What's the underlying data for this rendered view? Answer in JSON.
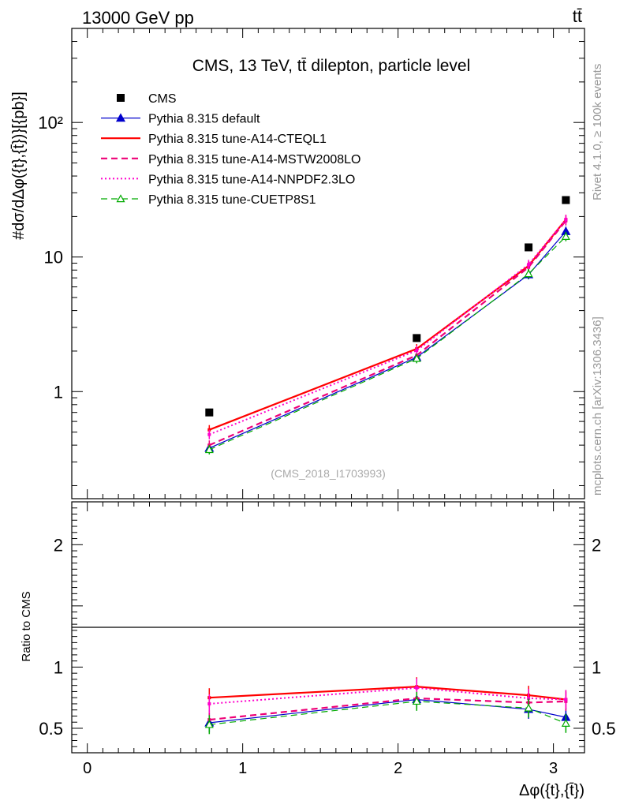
{
  "header": {
    "left": "13000 GeV pp",
    "right": "tt̄"
  },
  "side_label_top": "Rivet 4.1.0, ≥ 100k events",
  "side_label_bottom": "mcplots.cern.ch [arXiv:1306.3436]",
  "chart_data": {
    "type": "line",
    "title": "CMS, 13 TeV, tt̄ dilepton, particle level",
    "watermark": "(CMS_2018_I1703993)",
    "ylabel": "#dσ/dΔφ({t},{t̄})}[{pb}]",
    "xlabel": "Δφ({t},{t̄})",
    "ratio_ylabel": "Ratio to CMS",
    "xlim": [
      -0.1,
      3.2
    ],
    "ylim": [
      0.16,
      500
    ],
    "yscale": "log",
    "ratio_ylim": [
      0.3,
      2.35
    ],
    "x_ticks": [
      0,
      1,
      2,
      3
    ],
    "x_tick_labels": [
      "0",
      "1",
      "2",
      "3"
    ],
    "y_ticks": [
      1,
      10,
      100
    ],
    "y_tick_labels": [
      "1",
      "10",
      "10²"
    ],
    "ratio_ticks": [
      0.5,
      1,
      2
    ],
    "ratio_tick_labels": [
      "0.5",
      "1",
      "2"
    ],
    "x": [
      0.785,
      2.12,
      2.84,
      3.08
    ],
    "data": {
      "name": "CMS",
      "values": [
        0.7,
        2.5,
        11.8,
        26.5
      ],
      "color": "#000000"
    },
    "series": [
      {
        "name": "Pythia 8.315 default",
        "values": [
          0.38,
          1.8,
          7.4,
          15.5
        ],
        "ratio": [
          0.545,
          0.735,
          0.655,
          0.59
        ],
        "color": "#0000cc",
        "style": "solid",
        "marker": "triangle-filled",
        "width": 1.2
      },
      {
        "name": "Pythia 8.315 tune-A14-CTEQL1",
        "values": [
          0.52,
          2.08,
          8.6,
          19.0
        ],
        "ratio": [
          0.75,
          0.84,
          0.77,
          0.735
        ],
        "color": "#ff0000",
        "style": "solid",
        "marker": "none",
        "width": 2.2
      },
      {
        "name": "Pythia 8.315 tune-A14-MSTW2008LO",
        "values": [
          0.4,
          1.86,
          8.4,
          18.6
        ],
        "ratio": [
          0.57,
          0.745,
          0.71,
          0.72
        ],
        "color": "#ee0077",
        "style": "dashed",
        "marker": "none",
        "width": 2.2
      },
      {
        "name": "Pythia 8.315 tune-A14-NNPDF2.3LO",
        "values": [
          0.48,
          2.02,
          8.8,
          19.0
        ],
        "ratio": [
          0.7,
          0.83,
          0.745,
          0.735
        ],
        "color": "#ff00cc",
        "style": "dotted",
        "marker": "none",
        "width": 2.0
      },
      {
        "name": "Pythia 8.315 tune-CUETP8S1",
        "values": [
          0.37,
          1.76,
          7.5,
          14.2
        ],
        "ratio": [
          0.53,
          0.72,
          0.665,
          0.54
        ],
        "color": "#00aa00",
        "style": "dashed",
        "marker": "triangle-open",
        "width": 1.2
      }
    ]
  }
}
